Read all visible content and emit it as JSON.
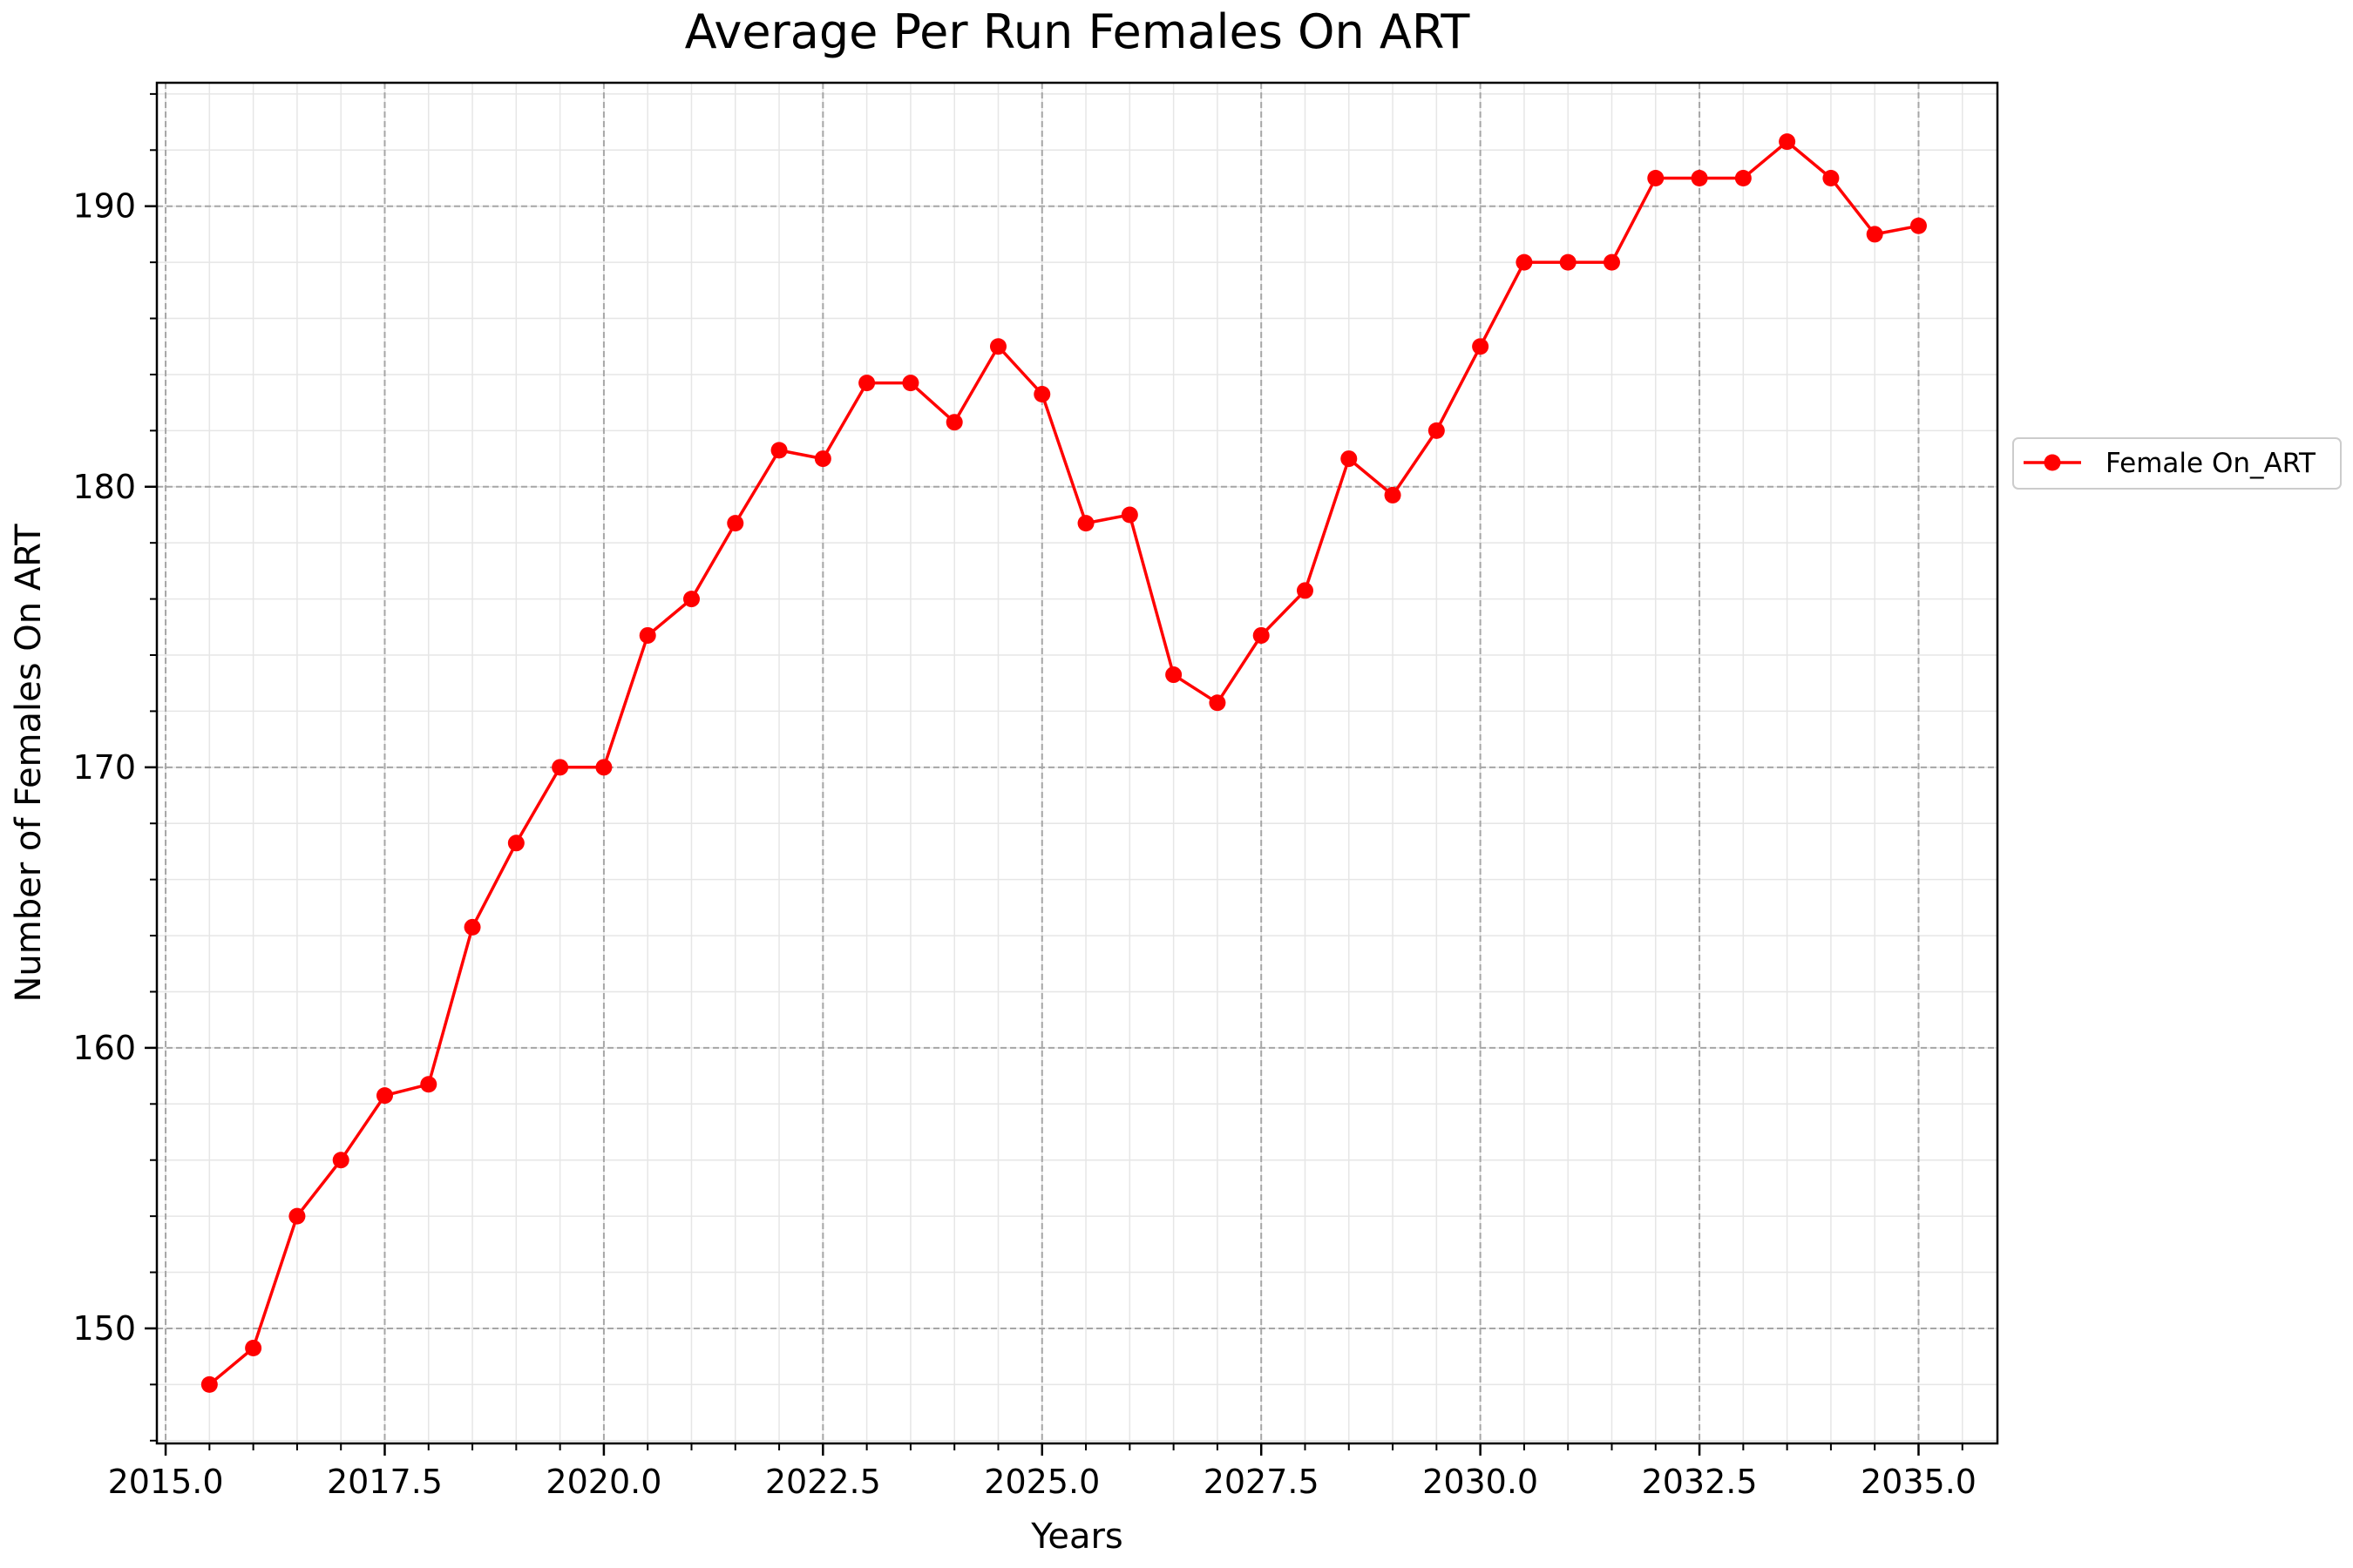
{
  "chart_data": {
    "type": "line",
    "title": "Average Per Run Females On ART",
    "xlabel": "Years",
    "ylabel": "Number of Females On ART",
    "xlim": [
      2014.9,
      2035.9
    ],
    "ylim": [
      145.9,
      194.4
    ],
    "x_ticks": [
      2015.0,
      2017.5,
      2020.0,
      2022.5,
      2025.0,
      2027.5,
      2030.0,
      2032.5,
      2035.0
    ],
    "x_tick_labels": [
      "2015.0",
      "2017.5",
      "2020.0",
      "2022.5",
      "2025.0",
      "2027.5",
      "2030.0",
      "2032.5",
      "2035.0"
    ],
    "y_ticks": [
      150,
      160,
      170,
      180,
      190
    ],
    "y_tick_labels": [
      "150",
      "160",
      "170",
      "180",
      "190"
    ],
    "x_minor_step": 0.5,
    "y_minor_step": 2,
    "grid": true,
    "legend_position": "outside right",
    "series": [
      {
        "name": "Female On_ART",
        "color": "#ff0000",
        "marker": "circle",
        "x": [
          2015.5,
          2016.0,
          2016.5,
          2017.0,
          2017.5,
          2018.0,
          2018.5,
          2019.0,
          2019.5,
          2020.0,
          2020.5,
          2021.0,
          2021.5,
          2022.0,
          2022.5,
          2023.0,
          2023.5,
          2024.0,
          2024.5,
          2025.0,
          2025.5,
          2026.0,
          2026.5,
          2027.0,
          2027.5,
          2028.0,
          2028.5,
          2029.0,
          2029.5,
          2030.0,
          2030.5,
          2031.0,
          2031.5,
          2032.0,
          2032.5,
          2033.0,
          2033.5,
          2034.0,
          2034.5,
          2035.0
        ],
        "y": [
          148.0,
          149.3,
          154.0,
          156.0,
          158.3,
          158.7,
          164.3,
          167.3,
          170.0,
          170.0,
          174.7,
          176.0,
          178.7,
          181.3,
          181.0,
          183.7,
          183.7,
          182.3,
          185.0,
          183.3,
          178.7,
          179.0,
          173.3,
          172.3,
          174.7,
          176.3,
          181.0,
          179.7,
          182.0,
          185.0,
          188.0,
          188.0,
          188.0,
          191.0,
          191.0,
          191.0,
          192.3,
          191.0,
          189.0,
          189.3
        ]
      }
    ]
  }
}
